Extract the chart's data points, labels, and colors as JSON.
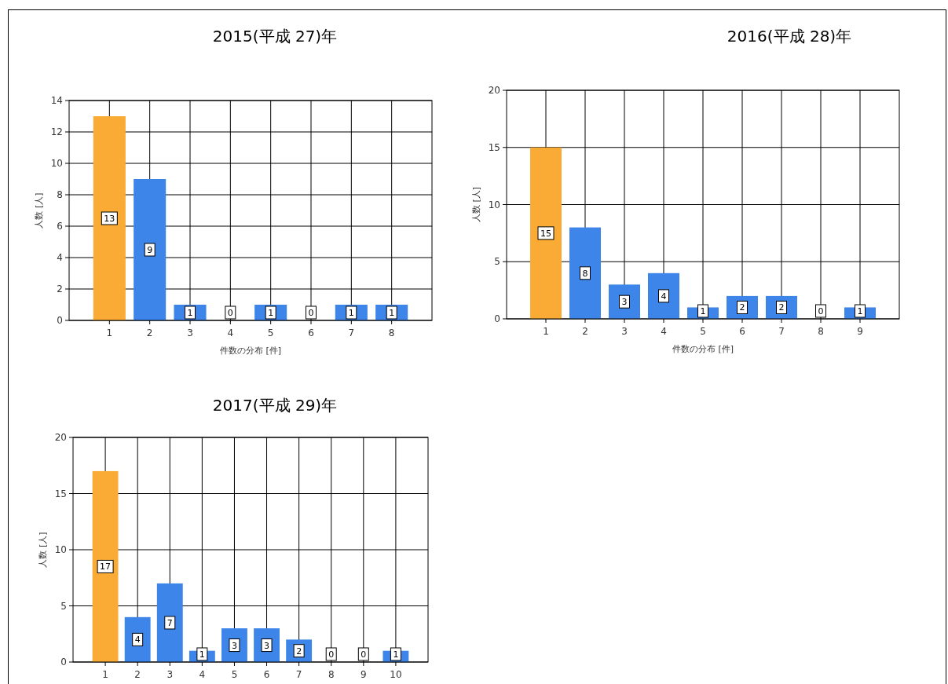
{
  "chart_data": [
    {
      "type": "bar",
      "title": "2015(平成 27)年",
      "xlabel": "件数の分布 [件]",
      "ylabel": "人数 [人]",
      "categories": [
        "1",
        "2",
        "3",
        "4",
        "5",
        "6",
        "7",
        "8"
      ],
      "values": [
        13,
        9,
        1,
        0,
        1,
        0,
        1,
        1
      ],
      "colors": [
        "#f9ab35",
        "#3d85e8",
        "#3d85e8",
        "#3d85e8",
        "#3d85e8",
        "#3d85e8",
        "#3d85e8",
        "#3d85e8"
      ],
      "ylim": [
        0,
        14
      ],
      "yticks": [
        0,
        2,
        4,
        6,
        8,
        10,
        12,
        14
      ],
      "grid": true,
      "data_labels": true
    },
    {
      "type": "bar",
      "title": "2016(平成 28)年",
      "xlabel": "件数の分布 [件]",
      "ylabel": "人数 [人]",
      "categories": [
        "1",
        "2",
        "3",
        "4",
        "5",
        "6",
        "7",
        "8",
        "9"
      ],
      "values": [
        15,
        8,
        3,
        4,
        1,
        2,
        2,
        0,
        1
      ],
      "colors": [
        "#f9ab35",
        "#3d85e8",
        "#3d85e8",
        "#3d85e8",
        "#3d85e8",
        "#3d85e8",
        "#3d85e8",
        "#3d85e8",
        "#3d85e8"
      ],
      "ylim": [
        0,
        20
      ],
      "yticks": [
        0,
        5,
        10,
        15,
        20
      ],
      "grid": true,
      "data_labels": true
    },
    {
      "type": "bar",
      "title": "2017(平成 29)年",
      "ylabel": "人数 [人]",
      "categories": [
        "1",
        "2",
        "3",
        "4",
        "5",
        "6",
        "7",
        "8",
        "9",
        "10"
      ],
      "values": [
        17,
        4,
        7,
        1,
        3,
        3,
        2,
        0,
        0,
        1
      ],
      "colors": [
        "#f9ab35",
        "#3d85e8",
        "#3d85e8",
        "#3d85e8",
        "#3d85e8",
        "#3d85e8",
        "#3d85e8",
        "#3d85e8",
        "#3d85e8",
        "#3d85e8"
      ],
      "ylim": [
        0,
        20
      ],
      "yticks": [
        0,
        5,
        10,
        15,
        20
      ],
      "grid": true,
      "data_labels": true
    }
  ]
}
